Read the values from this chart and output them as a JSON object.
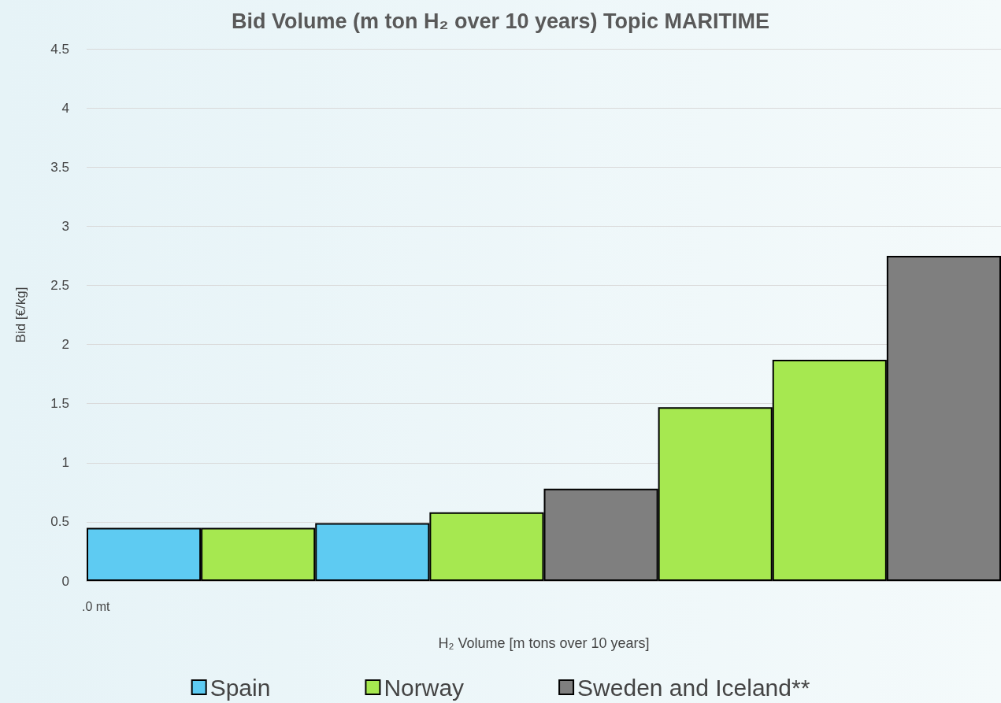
{
  "chart_data": {
    "type": "bar",
    "title": "Bid Volume (m ton H₂ over 10 years) Topic MARITIME",
    "xlabel": "H₂ Volume [m tons over 10 years]",
    "ylabel": "Bid [€/kg]",
    "categories": [
      null,
      null,
      null,
      null,
      null,
      null,
      null,
      null
    ],
    "series": [
      {
        "name": "Spain",
        "color": "#5ecbf2",
        "values": [
          0.45,
          null,
          0.49,
          null,
          null,
          null,
          null,
          null
        ]
      },
      {
        "name": "Norway",
        "color": "#a6e850",
        "values": [
          null,
          0.45,
          null,
          0.58,
          null,
          1.47,
          1.87,
          null
        ]
      },
      {
        "name": "Sweden and Iceland**",
        "color": "#7f7f7f",
        "values": [
          null,
          null,
          null,
          null,
          0.78,
          null,
          null,
          2.75
        ]
      }
    ],
    "ylim": [
      0,
      4.5
    ],
    "yticks": [
      0,
      0.5,
      1,
      1.5,
      2,
      2.5,
      3,
      3.5,
      4,
      4.5
    ],
    "grid": "y",
    "legend": "bottom",
    "annotations": [
      ".0 mt"
    ]
  }
}
